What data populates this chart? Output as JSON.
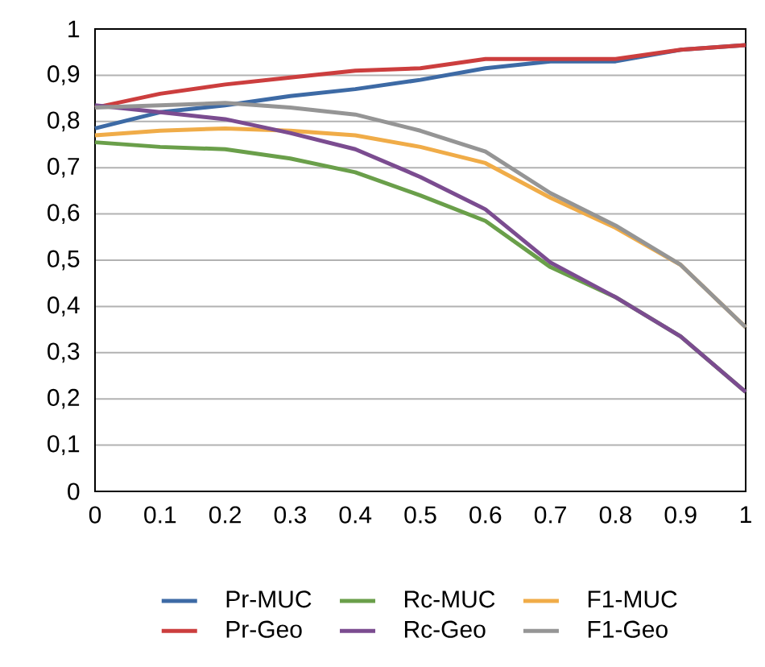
{
  "chart_data": {
    "type": "line",
    "x": [
      0,
      0.1,
      0.2,
      0.3,
      0.4,
      0.5,
      0.6,
      0.7,
      0.8,
      0.9,
      1
    ],
    "series": [
      {
        "name": "Pr-MUC",
        "color": "#3d6aa5",
        "values": [
          0.785,
          0.82,
          0.835,
          0.855,
          0.87,
          0.89,
          0.915,
          0.93,
          0.93,
          0.955,
          0.965
        ]
      },
      {
        "name": "Rc-MUC",
        "color": "#6a9f4a",
        "values": [
          0.755,
          0.745,
          0.74,
          0.72,
          0.69,
          0.64,
          0.585,
          0.485,
          0.42,
          0.335,
          0.215
        ]
      },
      {
        "name": "F1-MUC",
        "color": "#f0ac48",
        "values": [
          0.77,
          0.78,
          0.785,
          0.78,
          0.77,
          0.745,
          0.71,
          0.635,
          0.57,
          0.49,
          0.355
        ]
      },
      {
        "name": "Pr-Geo",
        "color": "#cc3e3e",
        "values": [
          0.83,
          0.86,
          0.88,
          0.895,
          0.91,
          0.915,
          0.935,
          0.935,
          0.935,
          0.955,
          0.965
        ]
      },
      {
        "name": "Rc-Geo",
        "color": "#7b4c90",
        "values": [
          0.835,
          0.82,
          0.805,
          0.775,
          0.74,
          0.68,
          0.61,
          0.495,
          0.42,
          0.335,
          0.215
        ]
      },
      {
        "name": "F1-Geo",
        "color": "#959595",
        "values": [
          0.83,
          0.835,
          0.84,
          0.83,
          0.815,
          0.78,
          0.735,
          0.645,
          0.575,
          0.49,
          0.355
        ]
      }
    ],
    "xlim": [
      0,
      1
    ],
    "ylim": [
      0,
      1
    ],
    "xticks": [
      0,
      0.1,
      0.2,
      0.3,
      0.4,
      0.5,
      0.6,
      0.7,
      0.8,
      0.9,
      1
    ],
    "yticks": [
      0,
      {
        "value": 0.1,
        "label": "0,1"
      },
      {
        "value": 0.2,
        "label": "0,2"
      },
      {
        "value": 0.3,
        "label": "0,3"
      },
      {
        "value": 0.4,
        "label": "0,4"
      },
      {
        "value": 0.5,
        "label": "0,5"
      },
      {
        "value": 0.6,
        "label": "0,6"
      },
      {
        "value": 0.7,
        "label": "0,7"
      },
      {
        "value": 0.8,
        "label": "0,8"
      },
      {
        "value": 0.9,
        "label": "0,9"
      },
      1
    ],
    "grid": "y",
    "legend": "bottom",
    "marker": "none",
    "line_style": "solid"
  }
}
